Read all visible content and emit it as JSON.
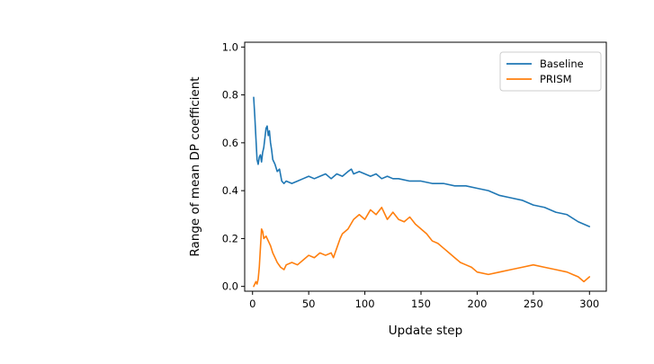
{
  "chart_data": {
    "type": "line",
    "title": "",
    "xlabel": "Update step",
    "ylabel": "Range of mean DP coefficient",
    "xlim": [
      -7,
      315
    ],
    "ylim": [
      -0.02,
      1.02
    ],
    "xticks": [
      0,
      50,
      100,
      150,
      200,
      250,
      300
    ],
    "yticks": [
      0.0,
      0.2,
      0.4,
      0.6,
      0.8,
      1.0
    ],
    "xtick_labels": [
      "0",
      "50",
      "100",
      "150",
      "200",
      "250",
      "300"
    ],
    "ytick_labels": [
      "0.0",
      "0.2",
      "0.4",
      "0.6",
      "0.8",
      "1.0"
    ],
    "grid": false,
    "legend_position": "top-right",
    "series": [
      {
        "name": "Baseline",
        "color": "#1f77b4",
        "x": [
          1,
          2,
          3,
          4,
          5,
          6,
          7,
          8,
          9,
          10,
          11,
          12,
          13,
          14,
          15,
          16,
          17,
          18,
          20,
          22,
          24,
          26,
          28,
          30,
          35,
          40,
          45,
          50,
          55,
          60,
          65,
          70,
          75,
          80,
          85,
          88,
          90,
          95,
          100,
          105,
          110,
          115,
          120,
          125,
          130,
          140,
          150,
          160,
          170,
          180,
          190,
          200,
          210,
          220,
          230,
          240,
          250,
          260,
          270,
          280,
          290,
          300
        ],
        "y": [
          0.79,
          0.71,
          0.62,
          0.53,
          0.51,
          0.54,
          0.55,
          0.52,
          0.56,
          0.58,
          0.62,
          0.66,
          0.67,
          0.63,
          0.65,
          0.6,
          0.57,
          0.53,
          0.51,
          0.48,
          0.49,
          0.44,
          0.43,
          0.44,
          0.43,
          0.44,
          0.45,
          0.46,
          0.45,
          0.46,
          0.47,
          0.45,
          0.47,
          0.46,
          0.48,
          0.49,
          0.47,
          0.48,
          0.47,
          0.46,
          0.47,
          0.45,
          0.46,
          0.45,
          0.45,
          0.44,
          0.44,
          0.43,
          0.43,
          0.42,
          0.42,
          0.41,
          0.4,
          0.38,
          0.37,
          0.36,
          0.34,
          0.33,
          0.31,
          0.3,
          0.27,
          0.25
        ]
      },
      {
        "name": "PRISM",
        "color": "#ff7f0e",
        "x": [
          1,
          2,
          3,
          4,
          5,
          6,
          7,
          8,
          9,
          10,
          12,
          14,
          16,
          18,
          20,
          22,
          25,
          28,
          30,
          35,
          40,
          45,
          50,
          55,
          60,
          65,
          70,
          72,
          75,
          78,
          80,
          85,
          90,
          95,
          100,
          105,
          110,
          115,
          120,
          125,
          130,
          135,
          140,
          145,
          150,
          155,
          160,
          165,
          170,
          175,
          180,
          185,
          190,
          195,
          200,
          210,
          220,
          230,
          240,
          250,
          260,
          270,
          280,
          290,
          295,
          300
        ],
        "y": [
          0.0,
          0.01,
          0.02,
          0.01,
          0.03,
          0.08,
          0.16,
          0.24,
          0.23,
          0.2,
          0.21,
          0.19,
          0.17,
          0.14,
          0.12,
          0.1,
          0.08,
          0.07,
          0.09,
          0.1,
          0.09,
          0.11,
          0.13,
          0.12,
          0.14,
          0.13,
          0.14,
          0.12,
          0.16,
          0.2,
          0.22,
          0.24,
          0.28,
          0.3,
          0.28,
          0.32,
          0.3,
          0.33,
          0.28,
          0.31,
          0.28,
          0.27,
          0.29,
          0.26,
          0.24,
          0.22,
          0.19,
          0.18,
          0.16,
          0.14,
          0.12,
          0.1,
          0.09,
          0.08,
          0.06,
          0.05,
          0.06,
          0.07,
          0.08,
          0.09,
          0.08,
          0.07,
          0.06,
          0.04,
          0.02,
          0.04
        ]
      }
    ]
  }
}
